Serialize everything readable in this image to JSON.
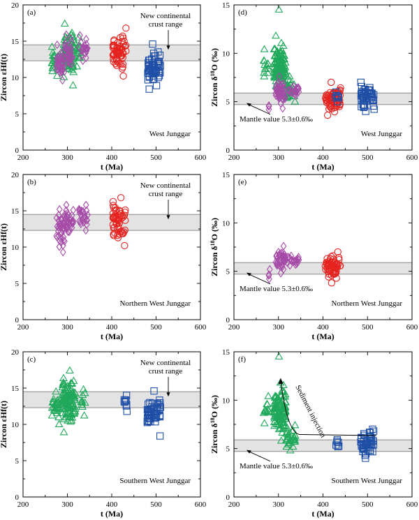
{
  "figure": {
    "colors": {
      "green": "#1fa85a",
      "purple": "#a64ba8",
      "red": "#e5231f",
      "blue": "#1f4fa6",
      "band": "#e3e3e3",
      "band_edge": "#7a7a7a"
    }
  },
  "chart_data": [
    {
      "id": "a",
      "type": "scatter",
      "panel_label": "(a)",
      "ylabel": "Zircon εHf(t)",
      "ylabel_parts": {
        "main": "Zircon εHf(t)"
      },
      "xlabel": "t (Ma)",
      "xlim": [
        200,
        600
      ],
      "ylim": [
        0,
        20
      ],
      "xticks": [
        200,
        300,
        400,
        500,
        600
      ],
      "yticks": [
        0,
        5,
        10,
        15,
        20
      ],
      "band": {
        "y0": 12.3,
        "y1": 14.5
      },
      "band_label": [
        "New continental",
        "crust range"
      ],
      "region_label": "West Junggar",
      "series": [
        {
          "marker": "triangle",
          "color": "green",
          "clusters": [
            {
              "x": [
                265,
                280
              ],
              "y": [
                10.2,
                14.2
              ],
              "n": 24
            },
            {
              "x": [
                290,
                316
              ],
              "y": [
                8.9,
                17.4
              ],
              "n": 90
            },
            {
              "x": [
                320,
                330
              ],
              "y": [
                11.5,
                15.5
              ],
              "n": 12
            }
          ]
        },
        {
          "marker": "diamond",
          "color": "purple",
          "clusters": [
            {
              "x": [
                275,
                290
              ],
              "y": [
                9.6,
                14.5
              ],
              "n": 32
            },
            {
              "x": [
                293,
                312
              ],
              "y": [
                10.8,
                15.9
              ],
              "n": 34
            },
            {
              "x": [
                326,
                346
              ],
              "y": [
                12.3,
                15.8
              ],
              "n": 22
            }
          ]
        },
        {
          "marker": "circle",
          "color": "red",
          "clusters": [
            {
              "x": [
                402,
                432
              ],
              "y": [
                10.2,
                16.8
              ],
              "n": 58
            }
          ]
        },
        {
          "marker": "square",
          "color": "blue",
          "clusters": [
            {
              "x": [
                480,
                510
              ],
              "y": [
                8.4,
                14.6
              ],
              "n": 52
            }
          ]
        }
      ]
    },
    {
      "id": "b",
      "type": "scatter",
      "panel_label": "(b)",
      "ylabel": "Zircon εHf(t)",
      "ylabel_parts": {
        "main": "Zircon εHf(t)"
      },
      "xlabel": "t (Ma)",
      "xlim": [
        200,
        600
      ],
      "ylim": [
        0,
        20
      ],
      "xticks": [
        200,
        300,
        400,
        500,
        600
      ],
      "yticks": [
        0,
        5,
        10,
        15,
        20
      ],
      "band": {
        "y0": 12.3,
        "y1": 14.5
      },
      "band_label": [
        "New continental",
        "crust range"
      ],
      "region_label": "Northern West Junggar",
      "series": [
        {
          "marker": "diamond",
          "color": "purple",
          "clusters": [
            {
              "x": [
                275,
                292
              ],
              "y": [
                9.3,
                15.2
              ],
              "n": 34
            },
            {
              "x": [
                293,
                314
              ],
              "y": [
                10.8,
                15.8
              ],
              "n": 36
            },
            {
              "x": [
                326,
                346
              ],
              "y": [
                12.3,
                15.8
              ],
              "n": 24
            }
          ]
        },
        {
          "marker": "circle",
          "color": "red",
          "clusters": [
            {
              "x": [
                402,
                432
              ],
              "y": [
                10.2,
                16.8
              ],
              "n": 58
            }
          ]
        }
      ]
    },
    {
      "id": "c",
      "type": "scatter",
      "panel_label": "(c)",
      "ylabel": "Zircon εHf(t)",
      "ylabel_parts": {
        "main": "Zircon εHf(t)"
      },
      "xlabel": "t (Ma)",
      "xlim": [
        200,
        600
      ],
      "ylim": [
        0,
        20
      ],
      "xticks": [
        200,
        300,
        400,
        500,
        600
      ],
      "yticks": [
        0,
        5,
        10,
        15,
        20
      ],
      "band": {
        "y0": 12.3,
        "y1": 14.5
      },
      "band_label": [
        "New continental",
        "crust range"
      ],
      "region_label": "Southern West Junggar",
      "series": [
        {
          "marker": "triangle",
          "color": "green",
          "clusters": [
            {
              "x": [
                265,
                282
              ],
              "y": [
                10.0,
                14.5
              ],
              "n": 26
            },
            {
              "x": [
                288,
                318
              ],
              "y": [
                8.9,
                17.4
              ],
              "n": 95
            },
            {
              "x": [
                330,
                340
              ],
              "y": [
                11.2,
                14.8
              ],
              "n": 10
            }
          ]
        },
        {
          "marker": "square",
          "color": "blue",
          "clusters": [
            {
              "x": [
                428,
                436
              ],
              "y": [
                11.8,
                14.0
              ],
              "n": 9
            },
            {
              "x": [
                480,
                510
              ],
              "y": [
                8.4,
                14.6
              ],
              "n": 52
            }
          ]
        }
      ]
    },
    {
      "id": "d",
      "type": "scatter",
      "panel_label": "(d)",
      "ylabel": "Zircon δ18O (‰)",
      "ylabel_parts": {
        "pre": "Zircon δ",
        "sup": "18",
        "post": "O (‰)"
      },
      "xlabel": "t (Ma)",
      "xlim": [
        200,
        600
      ],
      "ylim": [
        0,
        15
      ],
      "xticks": [
        200,
        300,
        400,
        500,
        600
      ],
      "yticks": [
        0,
        5,
        10,
        15
      ],
      "band": {
        "y0": 4.7,
        "y1": 5.9
      },
      "mantle_label": "Mantle value 5.3±0.6‰",
      "region_label": "West Junggar",
      "series": [
        {
          "marker": "triangle",
          "color": "green",
          "clusters": [
            {
              "x": [
                265,
                278
              ],
              "y": [
                7.6,
                10.4
              ],
              "n": 12
            },
            {
              "x": [
                290,
                316
              ],
              "y": [
                5.8,
                11.8
              ],
              "n": 110
            },
            {
              "x": [
                300,
                302
              ],
              "y": [
                14.5,
                14.6
              ],
              "n": 1
            },
            {
              "x": [
                316,
                338
              ],
              "y": [
                5.0,
                7.6
              ],
              "n": 30
            }
          ]
        },
        {
          "marker": "diamond",
          "color": "purple",
          "clusters": [
            {
              "x": [
                278,
                284
              ],
              "y": [
                4.2,
                4.6
              ],
              "n": 3
            },
            {
              "x": [
                293,
                315
              ],
              "y": [
                4.3,
                7.6
              ],
              "n": 45
            },
            {
              "x": [
                320,
                346
              ],
              "y": [
                5.6,
                6.6
              ],
              "n": 20
            }
          ]
        },
        {
          "marker": "circle",
          "color": "red",
          "clusters": [
            {
              "x": [
                405,
                440
              ],
              "y": [
                3.6,
                7.0
              ],
              "n": 60
            }
          ]
        },
        {
          "marker": "square",
          "color": "blue",
          "clusters": [
            {
              "x": [
                428,
                436
              ],
              "y": [
                5.0,
                6.0
              ],
              "n": 8
            },
            {
              "x": [
                485,
                515
              ],
              "y": [
                4.0,
                7.0
              ],
              "n": 50
            }
          ]
        }
      ]
    },
    {
      "id": "e",
      "type": "scatter",
      "panel_label": "(e)",
      "ylabel": "Zircon δ18O (‰)",
      "ylabel_parts": {
        "pre": "Zircon δ",
        "sup": "18",
        "post": "O (‰)"
      },
      "xlabel": "t (Ma)",
      "xlim": [
        200,
        600
      ],
      "ylim": [
        0,
        15
      ],
      "xticks": [
        200,
        300,
        400,
        500,
        600
      ],
      "yticks": [
        0,
        5,
        10,
        15
      ],
      "band": {
        "y0": 4.7,
        "y1": 5.9
      },
      "mantle_label": "Mantle value 5.3±0.6‰",
      "region_label": "Northern West Junggar",
      "series": [
        {
          "marker": "diamond",
          "color": "purple",
          "clusters": [
            {
              "x": [
                278,
                284
              ],
              "y": [
                4.2,
                5.2
              ],
              "n": 4
            },
            {
              "x": [
                293,
                316
              ],
              "y": [
                4.8,
                7.6
              ],
              "n": 45
            },
            {
              "x": [
                320,
                346
              ],
              "y": [
                5.6,
                6.6
              ],
              "n": 20
            }
          ]
        },
        {
          "marker": "circle",
          "color": "red",
          "clusters": [
            {
              "x": [
                405,
                440
              ],
              "y": [
                3.8,
                7.0
              ],
              "n": 58
            }
          ]
        }
      ]
    },
    {
      "id": "f",
      "type": "scatter",
      "panel_label": "(f)",
      "ylabel": "Zircon δ18O (‰)",
      "ylabel_parts": {
        "pre": "Zircon δ",
        "sup": "18",
        "post": "O (‰)"
      },
      "xlabel": "t (Ma)",
      "xlim": [
        200,
        600
      ],
      "ylim": [
        0,
        15
      ],
      "xticks": [
        200,
        300,
        400,
        500,
        600
      ],
      "yticks": [
        0,
        5,
        10,
        15
      ],
      "band": {
        "y0": 4.7,
        "y1": 5.9
      },
      "mantle_label": "Mantle value 5.3±0.6‰",
      "region_label": "Southern West Junggar",
      "annotation": "Sediment injection",
      "series": [
        {
          "marker": "triangle",
          "color": "green",
          "clusters": [
            {
              "x": [
                265,
                278
              ],
              "y": [
                7.6,
                10.4
              ],
              "n": 12
            },
            {
              "x": [
                290,
                316
              ],
              "y": [
                5.8,
                11.8
              ],
              "n": 110
            },
            {
              "x": [
                300,
                302
              ],
              "y": [
                14.5,
                14.6
              ],
              "n": 1
            },
            {
              "x": [
                316,
                338
              ],
              "y": [
                4.8,
                7.4
              ],
              "n": 30
            }
          ]
        },
        {
          "marker": "square",
          "color": "blue",
          "clusters": [
            {
              "x": [
                428,
                436
              ],
              "y": [
                5.2,
                5.9
              ],
              "n": 6
            },
            {
              "x": [
                485,
                515
              ],
              "y": [
                4.0,
                7.0
              ],
              "n": 50
            }
          ]
        }
      ]
    }
  ]
}
